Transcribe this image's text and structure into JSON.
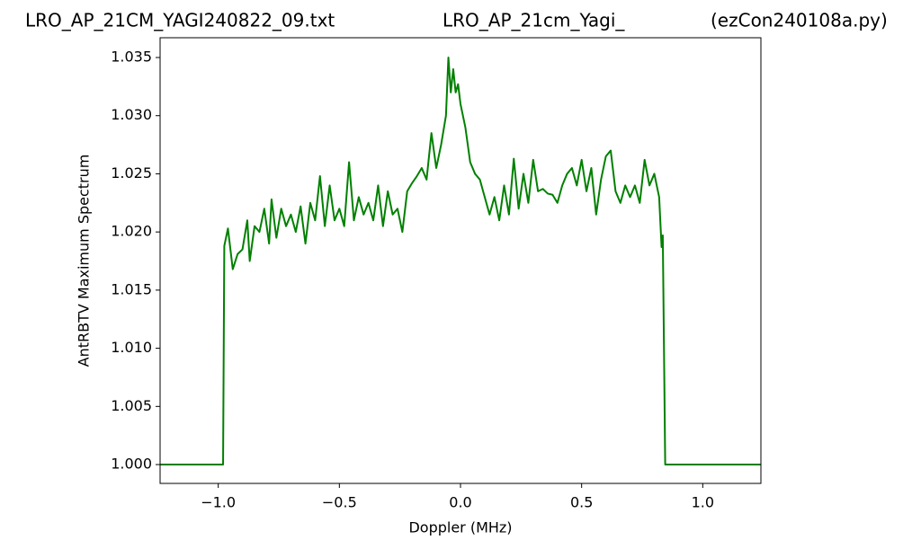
{
  "chart_data": {
    "type": "line",
    "title_left": "LRO_AP_21CM_YAGI240822_09.txt",
    "title_center": "LRO_AP_21cm_Yagi_",
    "title_right": "(ezCon240108a.py)",
    "xlabel": "Doppler (MHz)",
    "ylabel": "AntRBTV Maximum Spectrum",
    "x": [
      -1.24,
      -0.98,
      -0.975,
      -0.96,
      -0.94,
      -0.92,
      -0.9,
      -0.88,
      -0.87,
      -0.85,
      -0.83,
      -0.81,
      -0.79,
      -0.78,
      -0.76,
      -0.74,
      -0.72,
      -0.7,
      -0.68,
      -0.66,
      -0.64,
      -0.62,
      -0.6,
      -0.58,
      -0.56,
      -0.54,
      -0.52,
      -0.5,
      -0.48,
      -0.46,
      -0.44,
      -0.42,
      -0.4,
      -0.38,
      -0.36,
      -0.34,
      -0.32,
      -0.3,
      -0.28,
      -0.26,
      -0.24,
      -0.22,
      -0.2,
      -0.18,
      -0.16,
      -0.14,
      -0.12,
      -0.1,
      -0.08,
      -0.06,
      -0.05,
      -0.04,
      -0.03,
      -0.02,
      -0.01,
      0.0,
      0.02,
      0.04,
      0.06,
      0.08,
      0.1,
      0.12,
      0.14,
      0.16,
      0.18,
      0.2,
      0.22,
      0.24,
      0.26,
      0.28,
      0.3,
      0.32,
      0.34,
      0.36,
      0.38,
      0.4,
      0.42,
      0.44,
      0.46,
      0.48,
      0.5,
      0.52,
      0.54,
      0.56,
      0.58,
      0.6,
      0.62,
      0.64,
      0.66,
      0.68,
      0.7,
      0.72,
      0.74,
      0.76,
      0.78,
      0.8,
      0.82,
      0.83,
      0.835,
      0.845,
      1.24
    ],
    "series": [
      {
        "name": "AntRBTV",
        "color": "#008000",
        "values": [
          1.0,
          1.0,
          1.0188,
          1.0203,
          1.0168,
          1.0181,
          1.0185,
          1.021,
          1.0175,
          1.0205,
          1.02,
          1.022,
          1.019,
          1.0228,
          1.0195,
          1.022,
          1.0205,
          1.0215,
          1.02,
          1.0222,
          1.019,
          1.0225,
          1.021,
          1.0248,
          1.0205,
          1.024,
          1.021,
          1.022,
          1.0205,
          1.026,
          1.021,
          1.023,
          1.0215,
          1.0225,
          1.021,
          1.024,
          1.0205,
          1.0235,
          1.0215,
          1.022,
          1.02,
          1.0235,
          1.0242,
          1.0248,
          1.0255,
          1.0245,
          1.0285,
          1.0255,
          1.0275,
          1.03,
          1.035,
          1.032,
          1.034,
          1.032,
          1.0327,
          1.031,
          1.029,
          1.026,
          1.025,
          1.0245,
          1.023,
          1.0215,
          1.023,
          1.021,
          1.024,
          1.0215,
          1.0263,
          1.022,
          1.025,
          1.0225,
          1.0262,
          1.0235,
          1.0237,
          1.0233,
          1.0232,
          1.0225,
          1.024,
          1.025,
          1.0255,
          1.024,
          1.0262,
          1.0235,
          1.0255,
          1.0215,
          1.0245,
          1.0265,
          1.027,
          1.0235,
          1.0225,
          1.024,
          1.023,
          1.024,
          1.0225,
          1.0262,
          1.024,
          1.025,
          1.023,
          1.0187,
          1.0197,
          1.0,
          1.0
        ]
      }
    ],
    "xlim": [
      -1.24,
      1.24
    ],
    "ylim": [
      0.99838,
      1.0367
    ],
    "xticks": [
      {
        "value": -1.0,
        "label": "−1.0"
      },
      {
        "value": -0.5,
        "label": "−0.5"
      },
      {
        "value": 0,
        "label": "0.0"
      },
      {
        "value": 0.5,
        "label": "0.5"
      },
      {
        "value": 1.0,
        "label": "1.0"
      }
    ],
    "yticks": [
      {
        "value": 1.0,
        "label": "1.000"
      },
      {
        "value": 1.005,
        "label": "1.005"
      },
      {
        "value": 1.01,
        "label": "1.010"
      },
      {
        "value": 1.015,
        "label": "1.015"
      },
      {
        "value": 1.02,
        "label": "1.020"
      },
      {
        "value": 1.025,
        "label": "1.025"
      },
      {
        "value": 1.03,
        "label": "1.030"
      },
      {
        "value": 1.035,
        "label": "1.035"
      }
    ],
    "grid": false
  }
}
